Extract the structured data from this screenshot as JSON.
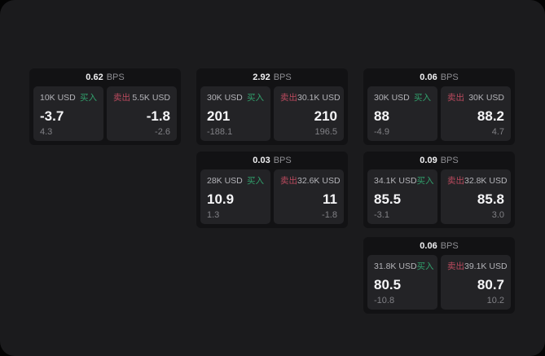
{
  "labels": {
    "buy": "买入",
    "sell": "卖出",
    "bps_unit": "BPS"
  },
  "colors": {
    "buy": "#31a06c",
    "sell": "#bb4a5e",
    "panel_bg": "#1b1b1d",
    "card_bg": "#121214",
    "cell_bg": "#232326"
  },
  "cards": [
    {
      "bps": "0.62",
      "row": 0,
      "col": 0,
      "buy": {
        "amount": "10K USD",
        "value": "-3.7",
        "change": "4.3"
      },
      "sell": {
        "amount": "5.5K USD",
        "value": "-1.8",
        "change": "-2.6"
      }
    },
    {
      "bps": "2.92",
      "row": 0,
      "col": 1,
      "buy": {
        "amount": "30K USD",
        "value": "201",
        "change": "-188.1"
      },
      "sell": {
        "amount": "30.1K USD",
        "value": "210",
        "change": "196.5"
      }
    },
    {
      "bps": "0.06",
      "row": 0,
      "col": 2,
      "buy": {
        "amount": "30K USD",
        "value": "88",
        "change": "-4.9"
      },
      "sell": {
        "amount": "30K USD",
        "value": "88.2",
        "change": "4.7"
      }
    },
    {
      "bps": "0.03",
      "row": 1,
      "col": 1,
      "buy": {
        "amount": "28K USD",
        "value": "10.9",
        "change": "1.3"
      },
      "sell": {
        "amount": "32.6K USD",
        "value": "11",
        "change": "-1.8"
      }
    },
    {
      "bps": "0.09",
      "row": 1,
      "col": 2,
      "buy": {
        "amount": "34.1K USD",
        "value": "85.5",
        "change": "-3.1"
      },
      "sell": {
        "amount": "32.8K USD",
        "value": "85.8",
        "change": "3.0"
      }
    },
    {
      "bps": "0.06",
      "row": 2,
      "col": 2,
      "buy": {
        "amount": "31.8K USD",
        "value": "80.5",
        "change": "-10.8"
      },
      "sell": {
        "amount": "39.1K USD",
        "value": "80.7",
        "change": "10.2"
      }
    }
  ]
}
